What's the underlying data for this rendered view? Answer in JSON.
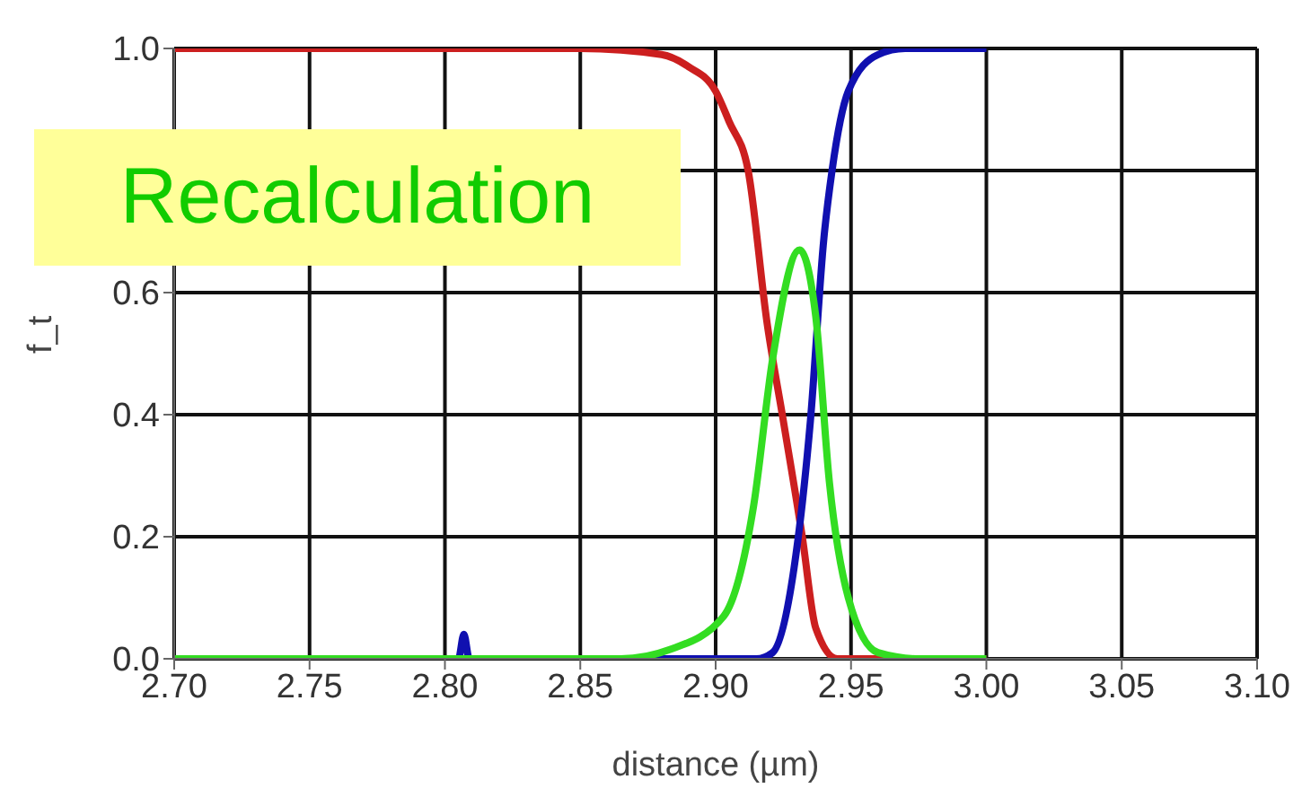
{
  "chart_data": {
    "type": "line",
    "xlabel": "distance (µm)",
    "ylabel": "f_t",
    "xlim": [
      2.7,
      3.1
    ],
    "ylim": [
      0,
      1
    ],
    "xticks": [
      {
        "value": 2.7,
        "label": "2.70"
      },
      {
        "value": 2.75,
        "label": "2.75"
      },
      {
        "value": 2.8,
        "label": "2.80"
      },
      {
        "value": 2.85,
        "label": "2.85"
      },
      {
        "value": 2.9,
        "label": "2.90"
      },
      {
        "value": 2.95,
        "label": "2.95"
      },
      {
        "value": 3.0,
        "label": "3.00"
      },
      {
        "value": 3.05,
        "label": "3.05"
      },
      {
        "value": 3.1,
        "label": "3.10"
      }
    ],
    "yticks": [
      {
        "value": 0,
        "label": "0.0"
      },
      {
        "value": 0.2,
        "label": "0.2"
      },
      {
        "value": 0.4,
        "label": "0.4"
      },
      {
        "value": 0.6,
        "label": "0.6"
      },
      {
        "value": 0.8,
        "label": null
      },
      {
        "value": 1,
        "label": "1.0"
      }
    ],
    "grid": true,
    "marker": "none",
    "line_style": "solid",
    "annotations": [
      "Recalculation"
    ],
    "series": [
      {
        "color": "#cc1f1f",
        "x": [
          2.7,
          2.85,
          2.88,
          2.89,
          2.9,
          2.905,
          2.912,
          2.919,
          2.925,
          2.932,
          2.937,
          2.945,
          3.0
        ],
        "values": [
          1,
          1,
          0.99,
          0.97,
          0.93,
          0.88,
          0.8,
          0.55,
          0.39,
          0.2,
          0.05,
          0,
          0
        ]
      },
      {
        "color": "#1010b0",
        "x": [
          2.7,
          2.805,
          2.807,
          2.809,
          2.9,
          2.915,
          2.921,
          2.929,
          2.935,
          2.94,
          2.943,
          2.949,
          2.96,
          2.97,
          3.0
        ],
        "values": [
          0,
          0,
          0.04,
          0,
          0,
          0,
          0.01,
          0.15,
          0.39,
          0.69,
          0.8,
          0.93,
          0.99,
          1,
          1
        ]
      },
      {
        "color": "#33dd22",
        "x": [
          2.7,
          2.865,
          2.883,
          2.903,
          2.914,
          2.921,
          2.931,
          2.937,
          2.942,
          2.949,
          2.96,
          2.975,
          3.0
        ],
        "values": [
          0,
          0,
          0.015,
          0.07,
          0.25,
          0.49,
          0.67,
          0.56,
          0.29,
          0.1,
          0.01,
          0,
          0
        ]
      }
    ]
  }
}
